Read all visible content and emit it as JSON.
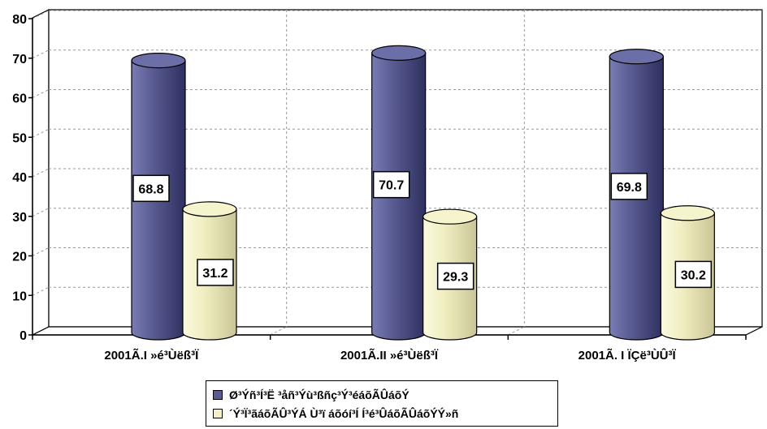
{
  "chart_data": {
    "type": "bar",
    "style": "3d-cylinder",
    "categories": [
      "2001Ã.I »é³Ùëß³Ï",
      "2001Ã.II »é³Ùëß³Ï",
      "2001Ã. I ÏÇë³ÙÛ³Ï"
    ],
    "series": [
      {
        "name": "Ø³Ýñ³Í³Ë ³åñ³Ýù³ßñç³Ý³éáõÃÛáõÝ",
        "values": [
          68.8,
          70.7,
          69.8
        ],
        "color": "#5a5c91"
      },
      {
        "name": "´Ý³Ï³ãáõÃÛ³ÝÁ Ù³ï áõóí³Í Í³é³ÛáõÃÛáõÝÝ»ñ",
        "values": [
          31.2,
          29.3,
          30.2
        ],
        "color": "#f3f1c4"
      }
    ],
    "data_labels": [
      "68.8",
      "70.7",
      "69.8",
      "31.2",
      "29.3",
      "30.2"
    ],
    "yticks": [
      "0",
      "10",
      "20",
      "30",
      "40",
      "50",
      "60",
      "70",
      "80"
    ],
    "ylim": [
      0,
      80
    ],
    "grid": true,
    "legend_position": "bottom",
    "title": "",
    "xlabel": "",
    "ylabel": ""
  },
  "legend": {
    "items": [
      {
        "label": "Ø³Ýñ³Í³Ë ³åñ³Ýù³ßñç³Ý³éáõÃÛáõÝ",
        "color": "#5a5c91"
      },
      {
        "label": "´Ý³Ï³ãáõÃÛ³ÝÁ Ù³ï áõóí³Í Í³é³ÛáõÃÛáõÝÝ»ñ",
        "color": "#f3f1c4"
      }
    ]
  }
}
